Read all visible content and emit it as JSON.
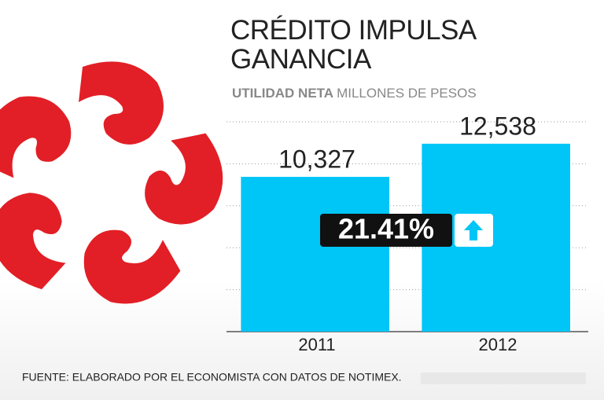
{
  "chart_data": {
    "type": "bar",
    "title": "CRÉDITO IMPULSA GANANCIA",
    "subtitle": "UTILIDAD NETA",
    "unit": "MILLONES DE PESOS",
    "categories": [
      "2011",
      "2012"
    ],
    "values": [
      10327,
      12538
    ],
    "value_labels": [
      "10,327",
      "12,538"
    ],
    "color": "#00c5f7",
    "ylim": [
      0,
      14000
    ],
    "yticks": [
      0,
      2800,
      5600,
      8400,
      11200,
      14000
    ],
    "grid": true,
    "annotation": "21.41%",
    "source": "FUENTE: ELABORADO POR EL ECONOMISTA CON DATOS DE NOTIMEX."
  }
}
